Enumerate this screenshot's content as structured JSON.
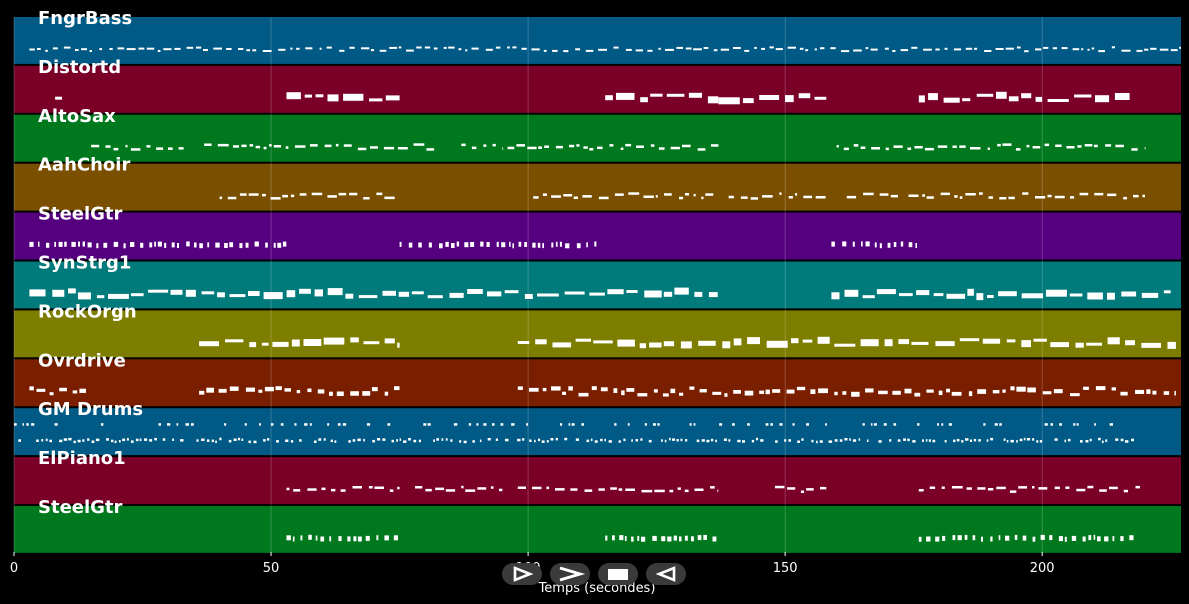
{
  "chart_data": {
    "type": "piano-roll",
    "xlabel": "Temps (secondes)",
    "xlim": [
      0,
      227
    ],
    "xticks": [
      0,
      50,
      100,
      150,
      200
    ],
    "grid": true,
    "tracks": [
      {
        "name": "FngrBass",
        "color": "#005a85",
        "segments": [
          [
            3,
            227
          ]
        ],
        "style": "bassline"
      },
      {
        "name": "Distortd",
        "color": "#7b0028",
        "segments": [
          [
            8,
            10
          ],
          [
            53,
            75
          ],
          [
            115,
            137
          ],
          [
            137,
            158
          ],
          [
            176,
            217
          ]
        ],
        "style": "blocks"
      },
      {
        "name": "AltoSax",
        "color": "#00781e",
        "segments": [
          [
            15,
            33
          ],
          [
            37,
            83
          ],
          [
            87,
            95
          ],
          [
            96,
            137
          ],
          [
            160,
            220
          ]
        ],
        "style": "melody"
      },
      {
        "name": "AahChoir",
        "color": "#7a5000",
        "segments": [
          [
            40,
            75
          ],
          [
            101,
            137
          ],
          [
            139,
            158
          ],
          [
            162,
            172
          ],
          [
            174,
            220
          ]
        ],
        "style": "melody"
      },
      {
        "name": "SteelGtr",
        "color": "#55007f",
        "segments": [
          [
            3,
            53
          ],
          [
            75,
            114
          ],
          [
            159,
            176
          ]
        ],
        "style": "strum"
      },
      {
        "name": "SynStrg1",
        "color": "#007a7a",
        "segments": [
          [
            3,
            137
          ],
          [
            159,
            225
          ]
        ],
        "style": "blocks"
      },
      {
        "name": "RockOrgn",
        "color": "#7d7d00",
        "segments": [
          [
            36,
            75
          ],
          [
            98,
            226
          ]
        ],
        "style": "blocks"
      },
      {
        "name": "Ovrdrive",
        "color": "#7a1e00",
        "segments": [
          [
            3,
            14
          ],
          [
            36,
            75
          ],
          [
            98,
            226
          ]
        ],
        "style": "riff"
      },
      {
        "name": "GM Drums",
        "color": "#005a85",
        "segments": [
          [
            0,
            218
          ]
        ],
        "style": "drums"
      },
      {
        "name": "ElPiano1",
        "color": "#7b0028",
        "segments": [
          [
            53,
            75
          ],
          [
            78,
            95
          ],
          [
            98,
            137
          ],
          [
            148,
            158
          ],
          [
            176,
            219
          ]
        ],
        "style": "melody"
      },
      {
        "name": "SteelGtr",
        "color": "#00781e",
        "segments": [
          [
            53,
            75
          ],
          [
            115,
            137
          ],
          [
            176,
            218
          ]
        ],
        "style": "strum"
      }
    ]
  },
  "controls": {
    "play_label": "▷",
    "forward_label": "≫",
    "stop_label": "■",
    "rewind_label": "◁"
  }
}
